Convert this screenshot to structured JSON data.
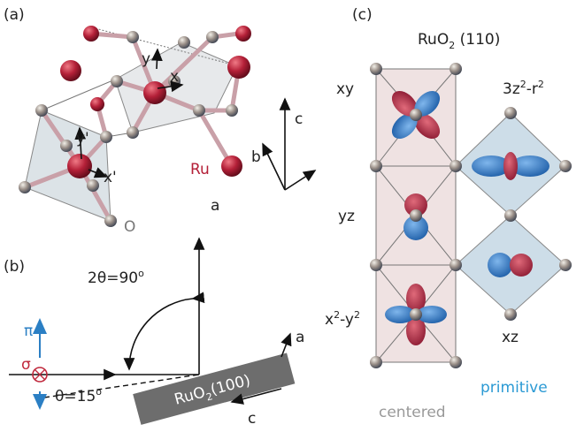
{
  "panel_a": {
    "label": "(a)",
    "local_axes": {
      "y": "y",
      "x": "x",
      "y_prime": "y'",
      "x_prime": "x'"
    },
    "crystal_axes": {
      "c": "c",
      "b": "b",
      "a": "a"
    },
    "atoms": {
      "ru": "Ru",
      "o": "O"
    }
  },
  "panel_b": {
    "label": "(b)",
    "two_theta": [
      "2θ=90",
      "o"
    ],
    "pi": "π",
    "sigma": "σ",
    "theta": [
      "θ=15",
      "o"
    ],
    "sample": [
      "RuO",
      "2",
      "(100)"
    ],
    "axes": {
      "a": "a",
      "c": "c"
    }
  },
  "panel_c": {
    "label": "(c)",
    "title": [
      "RuO",
      "2",
      " (110)"
    ],
    "orbitals": {
      "xy": "xy",
      "z2": [
        "3z",
        "2",
        "-r",
        "2"
      ],
      "yz": "yz",
      "x2_y2": [
        "x",
        "2",
        "-y",
        "2"
      ],
      "xz": "xz"
    },
    "primitive": "primitive",
    "centered": "centered"
  }
}
